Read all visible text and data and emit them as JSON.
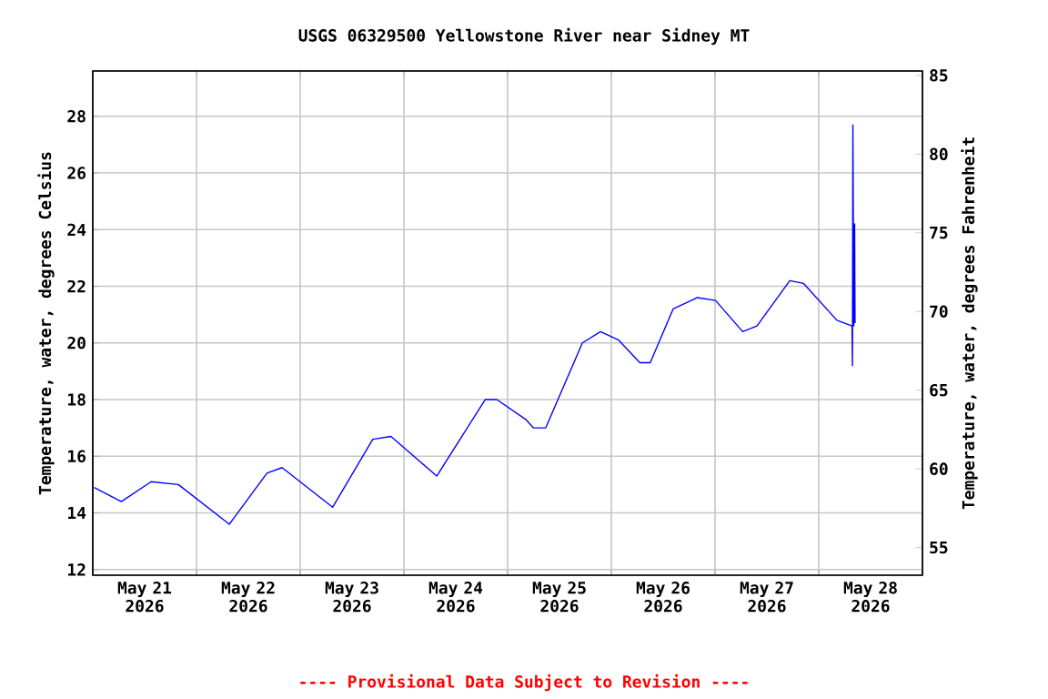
{
  "chart_data": {
    "type": "line",
    "title": "USGS 06329500 Yellowstone River near Sidney MT",
    "ylabel": "Temperature, water, degrees Celsius",
    "y2label": "Temperature, water, degrees Fahrenheit",
    "annotations": [
      "---- Provisional Data Subject to Revision ----"
    ],
    "x": [
      "2026-05-21T00:20",
      "2026-05-21T06:36",
      "2026-05-21T13:30",
      "2026-05-21T19:48",
      "2026-05-22T07:36",
      "2026-05-22T16:18",
      "2026-05-22T19:48",
      "2026-05-23T07:30",
      "2026-05-23T16:48",
      "2026-05-23T21:00",
      "2026-05-24T07:36",
      "2026-05-24T18:48",
      "2026-05-24T21:30",
      "2026-05-25T04:12",
      "2026-05-25T06:00",
      "2026-05-25T08:48",
      "2026-05-25T17:18",
      "2026-05-25T21:30",
      "2026-05-26T01:42",
      "2026-05-26T06:36",
      "2026-05-26T09:00",
      "2026-05-26T14:18",
      "2026-05-26T19:54",
      "2026-05-27T00:06",
      "2026-05-27T06:24",
      "2026-05-27T09:42",
      "2026-05-27T17:18",
      "2026-05-27T20:30",
      "2026-05-28T04:12",
      "2026-05-28T07:42",
      "2026-05-28T07:48",
      "2026-05-28T07:54",
      "2026-05-28T08:06",
      "2026-05-28T08:18",
      "2026-05-28T08:24"
    ],
    "series": [
      {
        "color": "#0000ff",
        "values": [
          14.9,
          14.4,
          15.1,
          15.0,
          13.6,
          15.4,
          15.6,
          14.2,
          16.6,
          16.7,
          15.3,
          18.0,
          18.0,
          17.3,
          17.0,
          17.0,
          20.0,
          20.4,
          20.1,
          19.3,
          19.3,
          21.2,
          21.6,
          21.5,
          20.4,
          20.6,
          22.2,
          22.1,
          20.8,
          20.6,
          19.2,
          27.7,
          20.6,
          24.2,
          20.7
        ]
      }
    ],
    "xlim": [
      "2026-05-21T00:00",
      "2026-05-29T00:00"
    ],
    "xticks": [
      {
        "value": "2026-05-21T00:00",
        "label": null
      },
      {
        "value": "2026-05-21T12:00",
        "label": "May 21 2026"
      },
      {
        "value": "2026-05-22T00:00",
        "label": null
      },
      {
        "value": "2026-05-22T12:00",
        "label": "May 22 2026"
      },
      {
        "value": "2026-05-23T00:00",
        "label": null
      },
      {
        "value": "2026-05-23T12:00",
        "label": "May 23 2026"
      },
      {
        "value": "2026-05-24T00:00",
        "label": null
      },
      {
        "value": "2026-05-24T12:00",
        "label": "May 24 2026"
      },
      {
        "value": "2026-05-25T00:00",
        "label": null
      },
      {
        "value": "2026-05-25T12:00",
        "label": "May 25 2026"
      },
      {
        "value": "2026-05-26T00:00",
        "label": null
      },
      {
        "value": "2026-05-26T12:00",
        "label": "May 26 2026"
      },
      {
        "value": "2026-05-27T00:00",
        "label": null
      },
      {
        "value": "2026-05-27T12:00",
        "label": "May 27 2026"
      },
      {
        "value": "2026-05-28T00:00",
        "label": null
      },
      {
        "value": "2026-05-28T12:00",
        "label": "May 28 2026"
      },
      {
        "value": "2026-05-29T00:00",
        "label": null
      }
    ],
    "ylim": [
      11.8,
      29.6
    ],
    "yticks": [
      12,
      14,
      16,
      18,
      20,
      22,
      24,
      26,
      28
    ],
    "y2lim": [
      53.24,
      85.28
    ],
    "y2ticks": [
      55,
      60,
      65,
      70,
      75,
      80,
      85
    ],
    "grid": true,
    "marker": "none",
    "line_style": "solid"
  }
}
